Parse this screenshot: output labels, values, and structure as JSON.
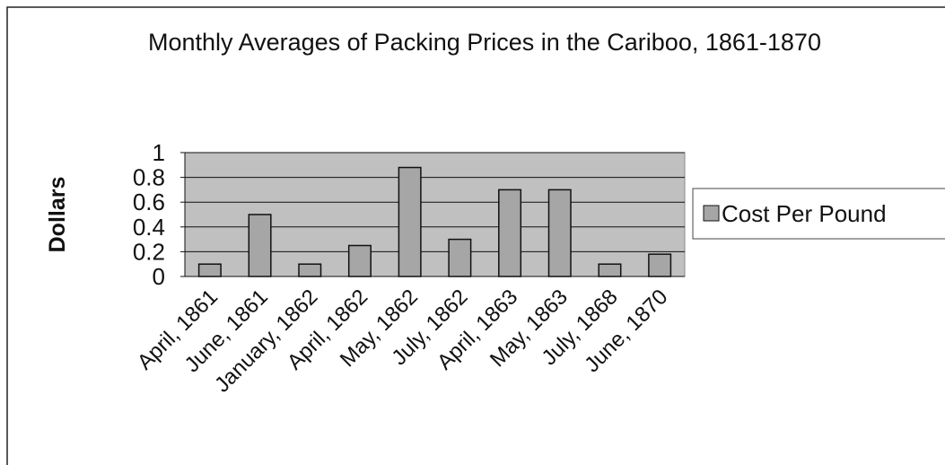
{
  "chart_data": {
    "type": "bar",
    "title": "Monthly Averages of Packing Prices in the Cariboo, 1861-1870",
    "y_label": "Dollars",
    "categories": [
      "April, 1861",
      "June, 1861",
      "January, 1862",
      "April, 1862",
      "May, 1862",
      "July, 1862",
      "April, 1863",
      "May, 1863",
      "July, 1868",
      "June, 1870"
    ],
    "series": [
      {
        "name": "Cost Per Pound",
        "color": "#a6a6a6",
        "values": [
          0.1,
          0.5,
          0.1,
          0.25,
          0.88,
          0.3,
          0.7,
          0.7,
          0.1,
          0.18
        ]
      }
    ],
    "ylim": [
      0,
      1
    ],
    "yticks": [
      0,
      0.2,
      0.4,
      0.6,
      0.8,
      1
    ],
    "grid": true,
    "legend": "right"
  }
}
